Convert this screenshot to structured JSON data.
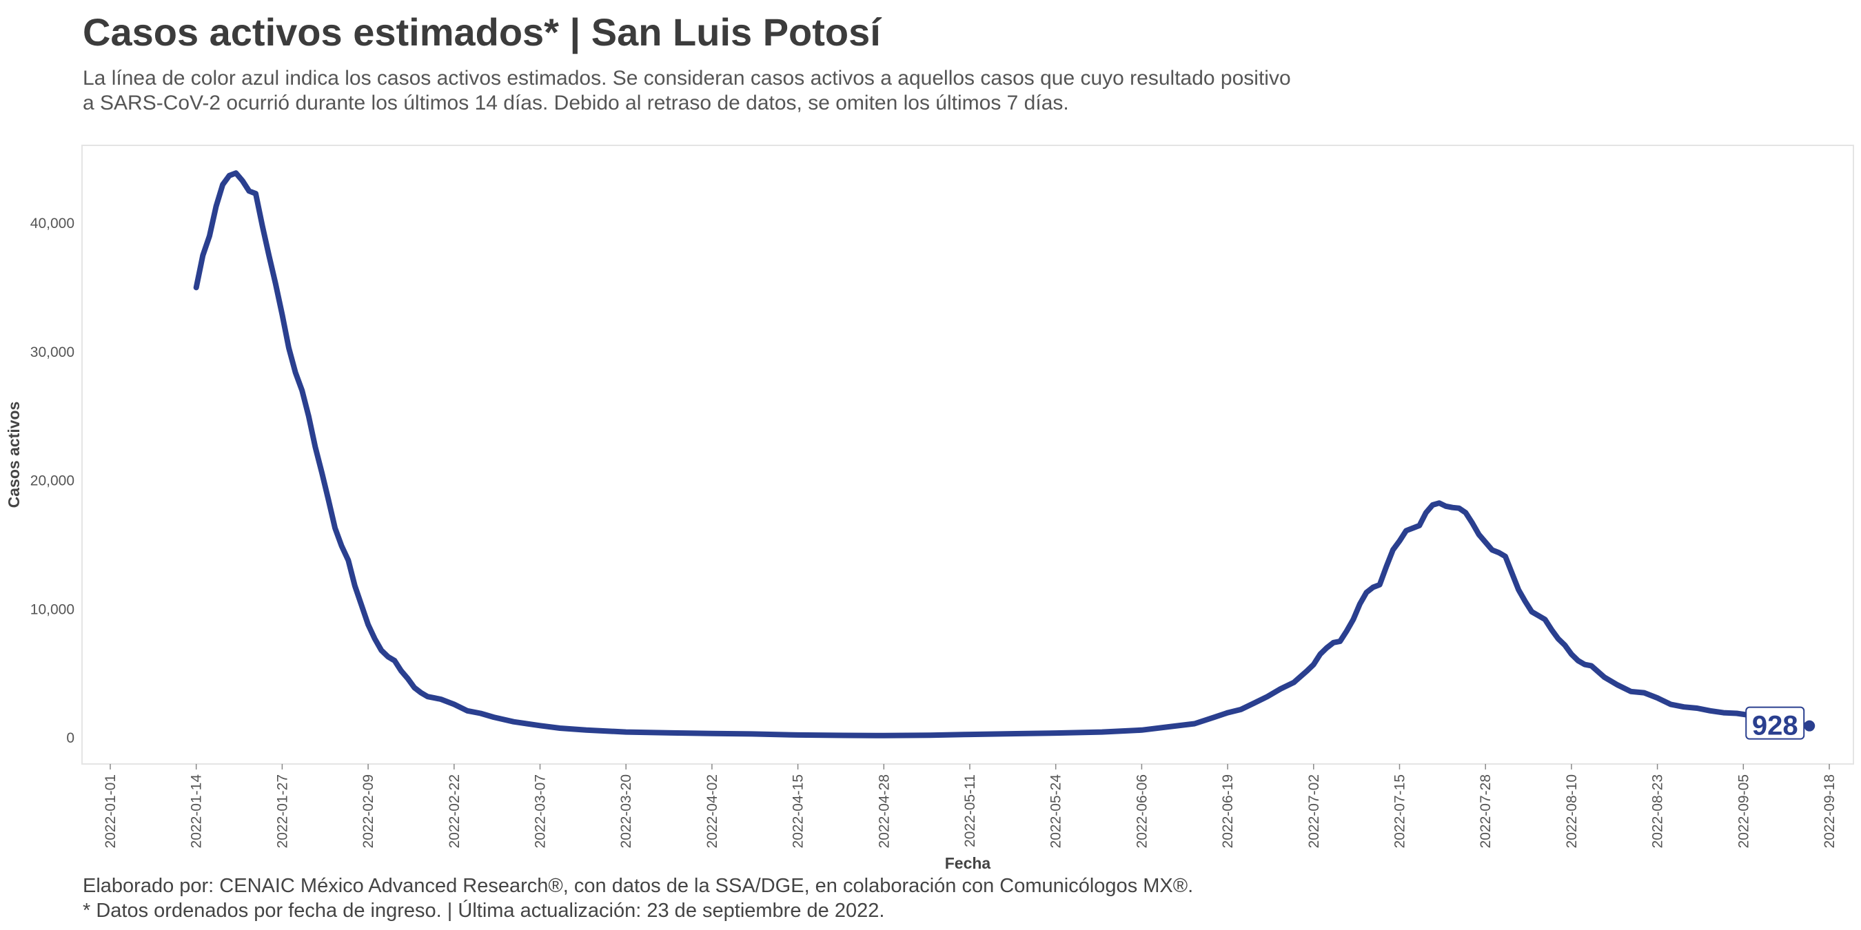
{
  "header": {
    "title": "Casos activos estimados* | San Luis Potosí",
    "subtitle_line1": "La línea de color azul indica los casos activos estimados. Se consideran casos activos a aquellos casos que cuyo resultado positivo",
    "subtitle_line2": "a SARS-CoV-2 ocurrió durante los últimos 14 días. Debido al retraso de datos, se omiten los últimos 7 días."
  },
  "footer": {
    "line1": "Elaborado por: CENAIC México Advanced Research®, con datos de la SSA/DGE, en colaboración con Comunicólogos MX®.",
    "line2": "* Datos ordenados por fecha de ingreso. | Última actualización: 23 de septiembre de 2022."
  },
  "colors": {
    "line": "#2a3f8f",
    "panel_border": "#e4e4e4"
  },
  "chart_data": {
    "type": "line",
    "xlabel": "Fecha",
    "ylabel": "Casos activos",
    "x_range": [
      "2022-01-01",
      "2022-09-18"
    ],
    "ylim": [
      -2000,
      46000
    ],
    "grid": false,
    "x_tick_labels": [
      "2022-01-01",
      "2022-01-14",
      "2022-01-27",
      "2022-02-09",
      "2022-02-22",
      "2022-03-07",
      "2022-03-20",
      "2022-04-02",
      "2022-04-15",
      "2022-04-28",
      "2022-05-11",
      "2022-05-24",
      "2022-06-06",
      "2022-06-19",
      "2022-07-02",
      "2022-07-15",
      "2022-07-28",
      "2022-08-10",
      "2022-08-23",
      "2022-09-05",
      "2022-09-18"
    ],
    "y_ticks": [
      0,
      10000,
      20000,
      30000,
      40000
    ],
    "y_tick_labels": [
      "0",
      "10,000",
      "20,000",
      "30,000",
      "40,000"
    ],
    "end_label": "928",
    "series": [
      {
        "points": [
          [
            "2022-01-14",
            35000
          ],
          [
            "2022-01-15",
            37500
          ],
          [
            "2022-01-16",
            39000
          ],
          [
            "2022-01-17",
            41300
          ],
          [
            "2022-01-18",
            43000
          ],
          [
            "2022-01-19",
            43700
          ],
          [
            "2022-01-20",
            43900
          ],
          [
            "2022-01-21",
            43300
          ],
          [
            "2022-01-22",
            42500
          ],
          [
            "2022-01-23",
            42300
          ],
          [
            "2022-01-24",
            39800
          ],
          [
            "2022-01-25",
            37500
          ],
          [
            "2022-01-26",
            35300
          ],
          [
            "2022-01-27",
            32900
          ],
          [
            "2022-01-28",
            30300
          ],
          [
            "2022-01-29",
            28400
          ],
          [
            "2022-01-30",
            27000
          ],
          [
            "2022-01-31",
            25000
          ],
          [
            "2022-02-01",
            22600
          ],
          [
            "2022-02-02",
            20600
          ],
          [
            "2022-02-03",
            18500
          ],
          [
            "2022-02-04",
            16300
          ],
          [
            "2022-02-05",
            14900
          ],
          [
            "2022-02-06",
            13800
          ],
          [
            "2022-02-07",
            11800
          ],
          [
            "2022-02-08",
            10300
          ],
          [
            "2022-02-09",
            8800
          ],
          [
            "2022-02-10",
            7700
          ],
          [
            "2022-02-11",
            6800
          ],
          [
            "2022-02-12",
            6300
          ],
          [
            "2022-02-13",
            6000
          ],
          [
            "2022-02-14",
            5200
          ],
          [
            "2022-02-15",
            4600
          ],
          [
            "2022-02-16",
            3900
          ],
          [
            "2022-02-17",
            3500
          ],
          [
            "2022-02-18",
            3200
          ],
          [
            "2022-02-19",
            3100
          ],
          [
            "2022-02-20",
            3000
          ],
          [
            "2022-02-22",
            2600
          ],
          [
            "2022-02-24",
            2100
          ],
          [
            "2022-02-26",
            1900
          ],
          [
            "2022-02-28",
            1600
          ],
          [
            "2022-03-03",
            1250
          ],
          [
            "2022-03-07",
            950
          ],
          [
            "2022-03-10",
            750
          ],
          [
            "2022-03-14",
            600
          ],
          [
            "2022-03-20",
            450
          ],
          [
            "2022-03-27",
            380
          ],
          [
            "2022-04-02",
            330
          ],
          [
            "2022-04-08",
            300
          ],
          [
            "2022-04-15",
            220
          ],
          [
            "2022-04-22",
            190
          ],
          [
            "2022-04-28",
            170
          ],
          [
            "2022-05-05",
            200
          ],
          [
            "2022-05-11",
            260
          ],
          [
            "2022-05-18",
            320
          ],
          [
            "2022-05-24",
            370
          ],
          [
            "2022-05-31",
            450
          ],
          [
            "2022-06-06",
            600
          ],
          [
            "2022-06-10",
            850
          ],
          [
            "2022-06-14",
            1100
          ],
          [
            "2022-06-17",
            1600
          ],
          [
            "2022-06-19",
            1950
          ],
          [
            "2022-06-21",
            2200
          ],
          [
            "2022-06-23",
            2700
          ],
          [
            "2022-06-25",
            3200
          ],
          [
            "2022-06-27",
            3800
          ],
          [
            "2022-06-29",
            4300
          ],
          [
            "2022-07-01",
            5200
          ],
          [
            "2022-07-02",
            5700
          ],
          [
            "2022-07-03",
            6500
          ],
          [
            "2022-07-04",
            7000
          ],
          [
            "2022-07-05",
            7400
          ],
          [
            "2022-07-06",
            7500
          ],
          [
            "2022-07-07",
            8300
          ],
          [
            "2022-07-08",
            9200
          ],
          [
            "2022-07-09",
            10400
          ],
          [
            "2022-07-10",
            11300
          ],
          [
            "2022-07-11",
            11700
          ],
          [
            "2022-07-12",
            11900
          ],
          [
            "2022-07-13",
            13300
          ],
          [
            "2022-07-14",
            14600
          ],
          [
            "2022-07-15",
            15300
          ],
          [
            "2022-07-16",
            16100
          ],
          [
            "2022-07-17",
            16300
          ],
          [
            "2022-07-18",
            16500
          ],
          [
            "2022-07-19",
            17500
          ],
          [
            "2022-07-20",
            18100
          ],
          [
            "2022-07-21",
            18250
          ],
          [
            "2022-07-22",
            18000
          ],
          [
            "2022-07-23",
            17900
          ],
          [
            "2022-07-24",
            17850
          ],
          [
            "2022-07-25",
            17500
          ],
          [
            "2022-07-26",
            16700
          ],
          [
            "2022-07-27",
            15800
          ],
          [
            "2022-07-28",
            15200
          ],
          [
            "2022-07-29",
            14600
          ],
          [
            "2022-07-30",
            14400
          ],
          [
            "2022-07-31",
            14100
          ],
          [
            "2022-08-01",
            12800
          ],
          [
            "2022-08-02",
            11500
          ],
          [
            "2022-08-03",
            10600
          ],
          [
            "2022-08-04",
            9800
          ],
          [
            "2022-08-05",
            9500
          ],
          [
            "2022-08-06",
            9200
          ],
          [
            "2022-08-07",
            8400
          ],
          [
            "2022-08-08",
            7700
          ],
          [
            "2022-08-09",
            7200
          ],
          [
            "2022-08-10",
            6500
          ],
          [
            "2022-08-11",
            6000
          ],
          [
            "2022-08-12",
            5700
          ],
          [
            "2022-08-13",
            5600
          ],
          [
            "2022-08-15",
            4700
          ],
          [
            "2022-08-17",
            4100
          ],
          [
            "2022-08-19",
            3600
          ],
          [
            "2022-08-21",
            3500
          ],
          [
            "2022-08-23",
            3100
          ],
          [
            "2022-08-25",
            2600
          ],
          [
            "2022-08-27",
            2400
          ],
          [
            "2022-08-29",
            2300
          ],
          [
            "2022-08-31",
            2100
          ],
          [
            "2022-09-02",
            1950
          ],
          [
            "2022-09-04",
            1900
          ],
          [
            "2022-09-06",
            1750
          ],
          [
            "2022-09-08",
            1500
          ],
          [
            "2022-09-10",
            1300
          ],
          [
            "2022-09-12",
            1100
          ],
          [
            "2022-09-13",
            1050
          ],
          [
            "2022-09-14",
            1000
          ],
          [
            "2022-09-15",
            928
          ]
        ]
      }
    ]
  }
}
